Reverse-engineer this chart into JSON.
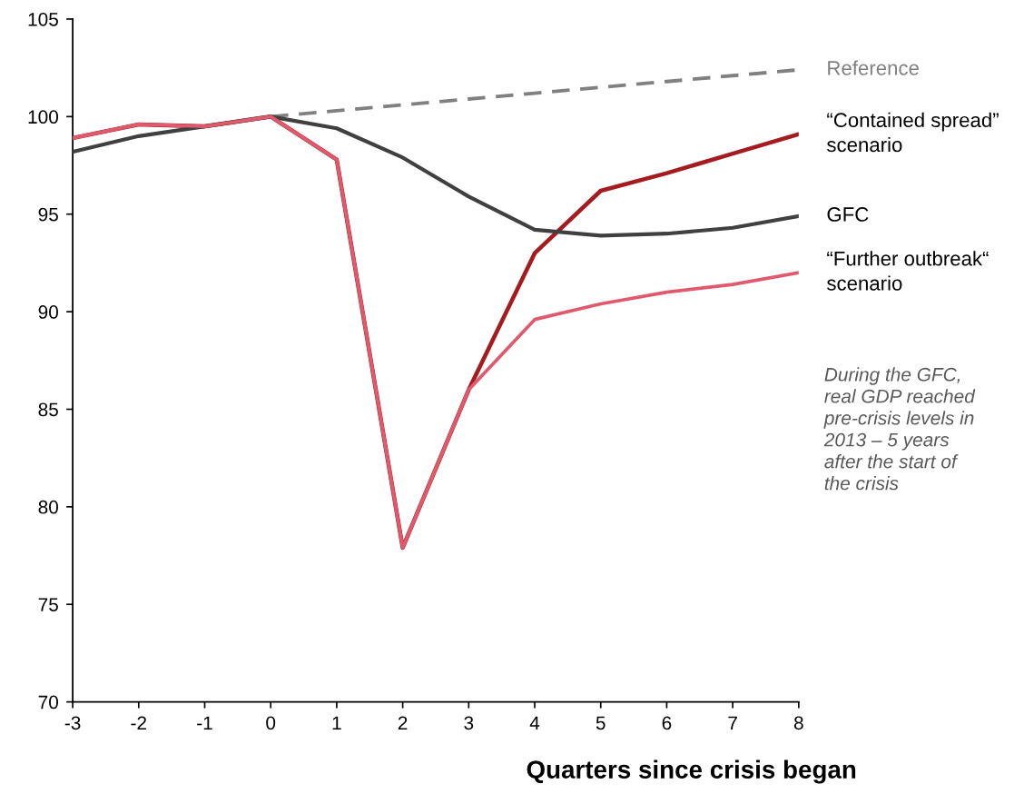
{
  "chart_data": {
    "type": "line",
    "xlabel": "Quarters since crisis began",
    "x": [
      -3,
      -2,
      -1,
      0,
      1,
      2,
      3,
      4,
      5,
      6,
      7,
      8
    ],
    "series": [
      {
        "name": "Reference",
        "color": "#808080",
        "line_style": "dashed",
        "x": [
          0,
          1,
          2,
          3,
          4,
          5,
          6,
          7,
          8
        ],
        "values": [
          100,
          100.3,
          100.6,
          100.9,
          101.2,
          101.5,
          101.8,
          102.1,
          102.4
        ]
      },
      {
        "name": "“Contained spread”\nscenario",
        "color": "#a51c20",
        "values": [
          98.9,
          99.6,
          99.5,
          100,
          97.8,
          77.9,
          86.0,
          93.0,
          96.2,
          97.1,
          98.1,
          99.1
        ]
      },
      {
        "name": "GFC",
        "color": "#404040",
        "values": [
          98.2,
          99.0,
          99.5,
          100,
          99.4,
          97.9,
          95.9,
          94.2,
          93.9,
          94.0,
          94.3,
          94.9
        ]
      },
      {
        "name": "“Further outbreak“\nscenario",
        "color": "#e05a6e",
        "values": [
          98.9,
          99.6,
          99.5,
          100,
          97.8,
          77.9,
          86.0,
          89.6,
          90.4,
          91.0,
          91.4,
          92.0
        ]
      }
    ],
    "xlim": [
      -3,
      8
    ],
    "xticks": [
      -3,
      -2,
      -1,
      0,
      1,
      2,
      3,
      4,
      5,
      6,
      7,
      8
    ],
    "ylim": [
      70,
      105
    ],
    "yticks": [
      70,
      75,
      80,
      85,
      90,
      95,
      100,
      105
    ],
    "grid": false,
    "legend": false,
    "marker": "none",
    "annotations": [
      "During the GFC,\nreal GDP reached\npre-crisis levels in\n2013 – 5 years\nafter the start of\nthe crisis"
    ]
  }
}
